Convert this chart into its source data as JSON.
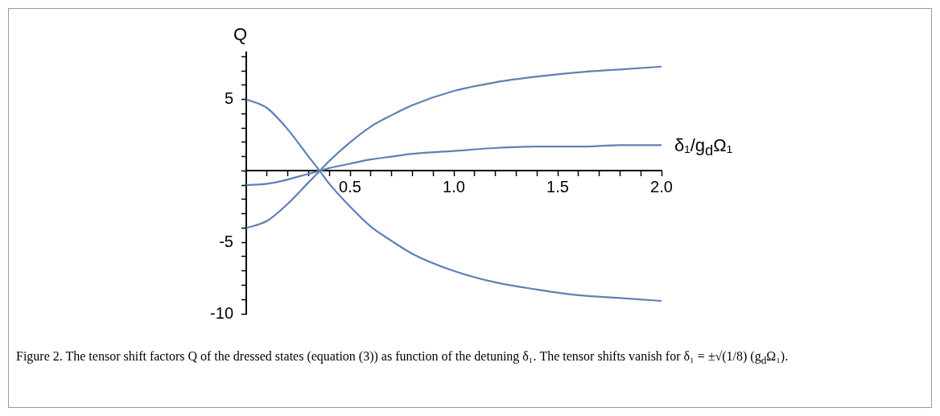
{
  "chart_data": {
    "type": "line",
    "xlabel": "δ₁/g$_{d}$Ω₁",
    "ylabel": "Q",
    "annotations": [
      "Figure 2. The tensor shift factors Q of the dressed states (equation (3)) as function of the detuning δ₁. The tensor shifts vanish for δ₁ = ±√(1/8) (g$_{d}$Ω₁)."
    ],
    "x": [
      0,
      0.1,
      0.2,
      0.3,
      0.354,
      0.4,
      0.5,
      0.6,
      0.7,
      0.8,
      1.0,
      1.2,
      1.4,
      1.6,
      1.8,
      2.0
    ],
    "series": [
      {
        "color": "#5e81b5",
        "values": [
          5,
          4.4,
          2.9,
          1.0,
          0,
          -0.9,
          -2.5,
          -3.9,
          -4.9,
          -5.8,
          -7.0,
          -7.8,
          -8.3,
          -8.7,
          -8.9,
          -9.1
        ]
      },
      {
        "color": "#5e81b5",
        "values": [
          -1,
          -0.9,
          -0.6,
          -0.2,
          0,
          0.2,
          0.5,
          0.8,
          1.0,
          1.2,
          1.4,
          1.6,
          1.7,
          1.7,
          1.8,
          1.8
        ]
      },
      {
        "color": "#5e81b5",
        "values": [
          -4,
          -3.5,
          -2.3,
          -0.8,
          0,
          0.7,
          2.0,
          3.1,
          3.9,
          4.6,
          5.6,
          6.2,
          6.6,
          6.9,
          7.1,
          7.3
        ]
      }
    ],
    "xlim": [
      0,
      2.0
    ],
    "ylim": [
      -10,
      8.3
    ],
    "xticks": [
      {
        "value": 0.1,
        "label": null
      },
      {
        "value": 0.2,
        "label": null
      },
      {
        "value": 0.3,
        "label": null
      },
      {
        "value": 0.4,
        "label": null
      },
      0.5,
      {
        "value": 0.6,
        "label": null
      },
      {
        "value": 0.7,
        "label": null
      },
      {
        "value": 0.8,
        "label": null
      },
      {
        "value": 0.9,
        "label": null
      },
      {
        "value": 1,
        "label": "1.0"
      },
      {
        "value": 1.1,
        "label": null
      },
      {
        "value": 1.2,
        "label": null
      },
      {
        "value": 1.3,
        "label": null
      },
      {
        "value": 1.4,
        "label": null
      },
      1.5,
      {
        "value": 1.6,
        "label": null
      },
      {
        "value": 1.7,
        "label": null
      },
      {
        "value": 1.8,
        "label": null
      },
      {
        "value": 1.9,
        "label": null
      },
      {
        "value": 2,
        "label": "2.0"
      }
    ],
    "yticks": [
      -10,
      {
        "value": -9,
        "label": null
      },
      {
        "value": -8,
        "label": null
      },
      {
        "value": -7,
        "label": null
      },
      {
        "value": -6,
        "label": null
      },
      -5,
      {
        "value": -4,
        "label": null
      },
      {
        "value": -3,
        "label": null
      },
      {
        "value": -2,
        "label": null
      },
      {
        "value": -1,
        "label": null
      },
      {
        "value": 0,
        "label": null
      },
      {
        "value": 1,
        "label": null
      },
      {
        "value": 2,
        "label": null
      },
      {
        "value": 3,
        "label": null
      },
      {
        "value": 4,
        "label": null
      },
      5,
      {
        "value": 6,
        "label": null
      },
      {
        "value": 7,
        "label": null
      },
      {
        "value": 8,
        "label": null
      }
    ],
    "grid": false,
    "legend": false,
    "marker": "none",
    "line_style": "solid"
  }
}
